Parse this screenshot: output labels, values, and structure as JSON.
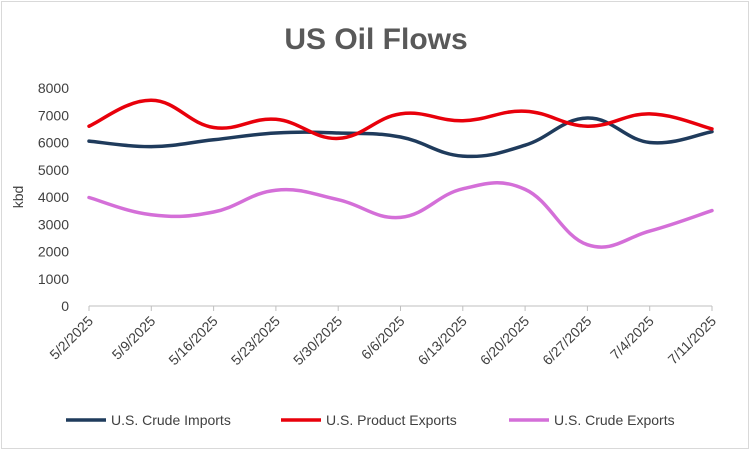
{
  "chart_data": {
    "type": "line",
    "title": "US Oil Flows",
    "ylabel": "kbd",
    "xlabel": "",
    "ylim": [
      0,
      8000
    ],
    "yticks": [
      0,
      1000,
      2000,
      3000,
      4000,
      5000,
      6000,
      7000,
      8000
    ],
    "categories": [
      "5/2/2025",
      "5/9/2025",
      "5/16/2025",
      "5/23/2025",
      "5/30/2025",
      "6/6/2025",
      "6/13/2025",
      "6/20/2025",
      "6/27/2025",
      "7/4/2025",
      "7/11/2025"
    ],
    "grid": false,
    "smooth": true,
    "legend_position": "bottom",
    "series": [
      {
        "name": "U.S. Crude Imports",
        "color": "#1f3b5c",
        "values": [
          6050,
          5850,
          6100,
          6350,
          6350,
          6200,
          5500,
          5900,
          6900,
          6000,
          6400
        ]
      },
      {
        "name": "U.S. Product Exports",
        "color": "#e8000b",
        "values": [
          6600,
          7550,
          6550,
          6850,
          6150,
          7050,
          6800,
          7150,
          6600,
          7050,
          6500
        ]
      },
      {
        "name": "U.S. Crude Exports",
        "color": "#d46fd8",
        "values": [
          3980,
          3350,
          3450,
          4250,
          3900,
          3250,
          4300,
          4280,
          2250,
          2750,
          3500
        ]
      }
    ]
  }
}
